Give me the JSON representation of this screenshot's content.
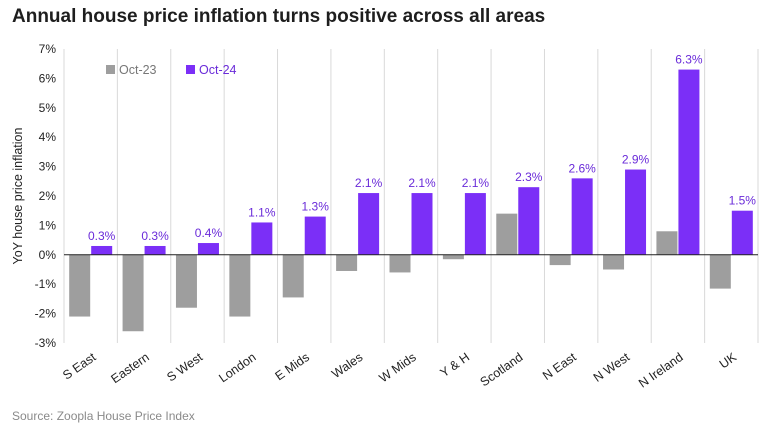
{
  "chart_data": {
    "type": "bar",
    "title": "Annual house price inflation turns positive across all areas",
    "xlabel": "",
    "ylabel": "YoY house price inflation",
    "ylim": [
      -3,
      7
    ],
    "yticks": [
      -3,
      -2,
      -1,
      0,
      1,
      2,
      3,
      4,
      5,
      6,
      7
    ],
    "ytick_labels": [
      "-3%",
      "-2%",
      "-1%",
      "0%",
      "1%",
      "2%",
      "3%",
      "4%",
      "5%",
      "6%",
      "7%"
    ],
    "categories": [
      "S East",
      "Eastern",
      "S West",
      "London",
      "E Mids",
      "Wales",
      "W Mids",
      "Y & H",
      "Scotland",
      "N East",
      "N West",
      "N Ireland",
      "UK"
    ],
    "series": [
      {
        "name": "Oct-23",
        "color": "#9e9e9e",
        "values": [
          -2.1,
          -2.6,
          -1.8,
          -2.1,
          -1.45,
          -0.55,
          -0.6,
          -0.15,
          1.4,
          -0.35,
          -0.5,
          0.8,
          -1.15
        ]
      },
      {
        "name": "Oct-24",
        "color": "#7b2ff7",
        "values": [
          0.3,
          0.3,
          0.4,
          1.1,
          1.3,
          2.1,
          2.1,
          2.1,
          2.3,
          2.6,
          2.9,
          6.3,
          1.5
        ],
        "data_labels": [
          "0.3%",
          "0.3%",
          "0.4%",
          "1.1%",
          "1.3%",
          "2.1%",
          "2.1%",
          "2.1%",
          "2.3%",
          "2.6%",
          "2.9%",
          "6.3%",
          "1.5%"
        ]
      }
    ],
    "legend_position": "top-left",
    "grid": "vertical",
    "source": "Source: Zoopla House Price Index"
  }
}
